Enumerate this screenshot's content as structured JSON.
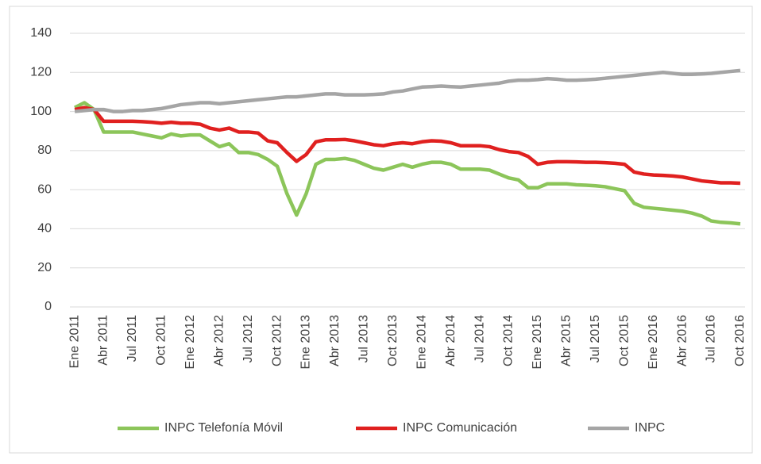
{
  "chart_data": {
    "type": "line",
    "categories": [
      "Ene 2011",
      null,
      null,
      "Abr 2011",
      null,
      null,
      "Jul 2011",
      null,
      null,
      "Oct 2011",
      null,
      null,
      "Ene 2012",
      null,
      null,
      "Abr 2012",
      null,
      null,
      "Jul 2012",
      null,
      null,
      "Oct 2012",
      null,
      null,
      "Ene 2013",
      null,
      null,
      "Abr 2013",
      null,
      null,
      "Jul 2013",
      null,
      null,
      "Oct 2013",
      null,
      null,
      "Ene 2014",
      null,
      null,
      "Abr 2014",
      null,
      null,
      "Jul 2014",
      null,
      null,
      "Oct 2014",
      null,
      null,
      "Ene 2015",
      null,
      null,
      "Abr 2015",
      null,
      null,
      "Jul 2015",
      null,
      null,
      "Oct 2015",
      null,
      null,
      "Ene 2016",
      null,
      null,
      "Abr 2016",
      null,
      null,
      "Jul 2016",
      null,
      null,
      "Oct 2016"
    ],
    "series": [
      {
        "name": "INPC Telefonía Móvil",
        "color": "#8cc55a",
        "values": [
          102,
          104.5,
          101,
          89.5,
          89.5,
          89.5,
          89.5,
          88.5,
          87.5,
          86.5,
          88.5,
          87.5,
          88,
          88,
          85,
          82,
          83.5,
          79,
          79,
          78,
          75.5,
          72,
          58,
          47,
          58,
          73,
          75.5,
          75.5,
          76,
          75,
          73,
          71,
          70,
          71.5,
          73,
          71.5,
          73,
          74,
          74,
          73,
          70.5,
          70.5,
          70.5,
          70,
          68,
          66,
          65,
          61,
          61,
          63,
          63,
          63,
          62.5,
          62.3,
          62,
          61.5,
          60.5,
          59.5,
          53,
          51,
          50.5,
          50,
          49.5,
          49,
          48,
          46.5,
          44,
          43.3,
          43,
          42.5
        ]
      },
      {
        "name": "INPC Comunicación",
        "color": "#e0201f",
        "values": [
          101,
          102,
          101,
          95,
          95,
          95,
          95,
          94.8,
          94.5,
          94,
          94.5,
          94,
          94,
          93.5,
          91.5,
          90.5,
          91.5,
          89.5,
          89.5,
          89,
          85,
          84,
          79,
          74.5,
          78,
          84.5,
          85.5,
          85.5,
          85.7,
          85,
          84,
          83,
          82.5,
          83.5,
          84,
          83.5,
          84.5,
          85,
          84.8,
          84,
          82.5,
          82.5,
          82.5,
          82,
          80.5,
          79.5,
          79,
          77,
          73,
          74,
          74.3,
          74.3,
          74.2,
          74,
          74,
          73.8,
          73.5,
          73,
          69,
          68,
          67.5,
          67.3,
          67,
          66.5,
          65.5,
          64.5,
          64,
          63.5,
          63.5,
          63.3
        ]
      },
      {
        "name": "INPC",
        "color": "#a5a5a5",
        "values": [
          100,
          100.5,
          101,
          101,
          100,
          100,
          100.5,
          100.5,
          101,
          101.5,
          102.5,
          103.5,
          104,
          104.5,
          104.5,
          104,
          104.5,
          105,
          105.5,
          106,
          106.5,
          107,
          107.5,
          107.5,
          108,
          108.5,
          109,
          109,
          108.5,
          108.5,
          108.5,
          108.7,
          109,
          110,
          110.5,
          111.5,
          112.5,
          112.7,
          113,
          112.7,
          112.5,
          113,
          113.5,
          114,
          114.5,
          115.5,
          116,
          116,
          116.3,
          116.8,
          116.5,
          116,
          116,
          116.2,
          116.5,
          117,
          117.5,
          118,
          118.5,
          119,
          119.5,
          120,
          119.5,
          119,
          119,
          119.2,
          119.5,
          120,
          120.5,
          121
        ]
      }
    ],
    "ylim": [
      0,
      140
    ],
    "yticks": [
      0,
      20,
      40,
      60,
      80,
      100,
      120,
      140
    ],
    "grid": true,
    "legend": "bottom"
  }
}
